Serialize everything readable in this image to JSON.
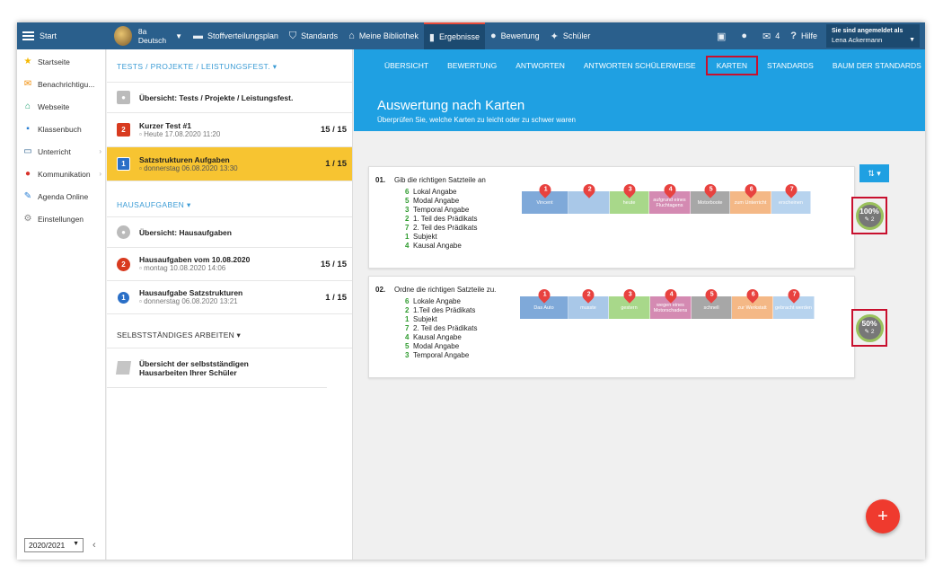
{
  "topbar": {
    "start": "Start",
    "class_name": "8a",
    "class_subject": "Deutsch",
    "nav": [
      {
        "label": "Stoffverteilungsplan",
        "icon": "calendar-icon"
      },
      {
        "label": "Standards",
        "icon": "shield-icon"
      },
      {
        "label": "Meine Bibliothek",
        "icon": "library-icon"
      },
      {
        "label": "Ergebnisse",
        "icon": "bar-chart-icon"
      },
      {
        "label": "Bewertung",
        "icon": "rating-icon"
      },
      {
        "label": "Schüler",
        "icon": "students-icon"
      }
    ],
    "messages_count": "4",
    "help": "Hilfe",
    "user_caption": "Sie sind angemeldet als",
    "user_name": "Lena Ackermann"
  },
  "sidebar": {
    "items": [
      {
        "label": "Startseite",
        "icon": "star-icon"
      },
      {
        "label": "Benachrichtigu...",
        "icon": "envelope-icon"
      },
      {
        "label": "Webseite",
        "icon": "home-icon"
      },
      {
        "label": "Klassenbuch",
        "icon": "book-icon"
      },
      {
        "label": "Unterricht",
        "icon": "folder-icon"
      },
      {
        "label": "Kommunikation",
        "icon": "chat-icon"
      },
      {
        "label": "Agenda Online",
        "icon": "pen-icon"
      },
      {
        "label": "Einstellungen",
        "icon": "gear-icon"
      }
    ],
    "year": "2020/2021"
  },
  "list": {
    "tests_header": "TESTS / PROJEKTE / LEISTUNGSFEST.",
    "tests_overview": "Übersicht: Tests / Projekte / Leistungsfest.",
    "tests": [
      {
        "badge": "2",
        "title": "Kurzer Test #1",
        "sub": "Heute 17.08.2020 11:20",
        "score": "15 / 15"
      },
      {
        "badge": "1",
        "title": "Satzstrukturen Aufgaben",
        "sub": "donnerstag 06.08.2020 13:30",
        "score": "1 / 15"
      }
    ],
    "hw_header": "HAUSAUFGABEN",
    "hw_overview": "Übersicht: Hausaufgaben",
    "homework": [
      {
        "badge": "2",
        "title": "Hausaufgaben vom 10.08.2020",
        "sub": "montag 10.08.2020 14:06",
        "score": "15 / 15"
      },
      {
        "badge": "1",
        "title": "Hausaufgabe Satzstrukturen",
        "sub": "donnerstag 06.08.2020 13:21",
        "score": "1 / 15"
      }
    ],
    "self_header": "SELBSTSTÄNDIGES ARBEITEN",
    "self_line1": "Übersicht der selbstständigen",
    "self_line2": "Hausarbeiten Ihrer Schüler"
  },
  "tabs": [
    "ÜBERSICHT",
    "BEWERTUNG",
    "ANTWORTEN",
    "ANTWORTEN SCHÜLERWEISE",
    "KARTEN",
    "STANDARDS",
    "BAUM DER STANDARDS"
  ],
  "hero": {
    "title": "Auswertung nach Karten",
    "subtitle": "Überprüfen Sie, welche Karten zu leicht oder zu schwer waren"
  },
  "questions": [
    {
      "num": "01.",
      "text": "Gib die richtigen Satzteile an",
      "answers": [
        {
          "n": "6",
          "t": "Lokal Angabe"
        },
        {
          "n": "5",
          "t": "Modal Angabe"
        },
        {
          "n": "3",
          "t": "Temporal Angabe"
        },
        {
          "n": "2",
          "t": "1. Teil des Prädikats"
        },
        {
          "n": "7",
          "t": "2. Teil des Prädikats"
        },
        {
          "n": "1",
          "t": "Subjekt"
        },
        {
          "n": "4",
          "t": "Kausal Angabe"
        }
      ],
      "cards": [
        {
          "label": "Vincent",
          "pin": "1",
          "color": "#7fa9d9"
        },
        {
          "label": "",
          "pin": "2",
          "color": "#a9c8e8"
        },
        {
          "label": "heute",
          "pin": "3",
          "color": "#a8d88a"
        },
        {
          "label": "aufgrund eines Fluchtagens",
          "pin": "4",
          "color": "#d48ab2"
        },
        {
          "label": "Motorboote",
          "pin": "5",
          "color": "#a7a7a7"
        },
        {
          "label": "zum Unterricht",
          "pin": "6",
          "color": "#f4b886"
        },
        {
          "label": "erscheinen",
          "pin": "7",
          "color": "#b7d3ee"
        }
      ],
      "percent": "100%",
      "attempts": "2"
    },
    {
      "num": "02.",
      "text": "Ordne die richtigen Satzteile zu.",
      "answers": [
        {
          "n": "6",
          "t": "Lokale Angabe"
        },
        {
          "n": "2",
          "t": "1.Teil des Prädikats"
        },
        {
          "n": "1",
          "t": "Subjekt"
        },
        {
          "n": "7",
          "t": "2. Teil des Prädikats"
        },
        {
          "n": "4",
          "t": "Kausal Angabe"
        },
        {
          "n": "5",
          "t": "Modal Angabe"
        },
        {
          "n": "3",
          "t": "Temporal Angabe"
        }
      ],
      "cards": [
        {
          "label": "Das Auto",
          "pin": "1",
          "color": "#7fa9d9"
        },
        {
          "label": "musste",
          "pin": "2",
          "color": "#a9c8e8"
        },
        {
          "label": "gestern",
          "pin": "3",
          "color": "#a8d88a"
        },
        {
          "label": "wegen eines Motorschadens",
          "pin": "4",
          "color": "#d48ab2"
        },
        {
          "label": "schnell",
          "pin": "5",
          "color": "#a7a7a7"
        },
        {
          "label": "zur Werkstatt",
          "pin": "6",
          "color": "#f4b886"
        },
        {
          "label": "gebracht werden",
          "pin": "7",
          "color": "#b7d3ee"
        }
      ],
      "percent": "50%",
      "attempts": "2"
    }
  ],
  "fab": "+"
}
